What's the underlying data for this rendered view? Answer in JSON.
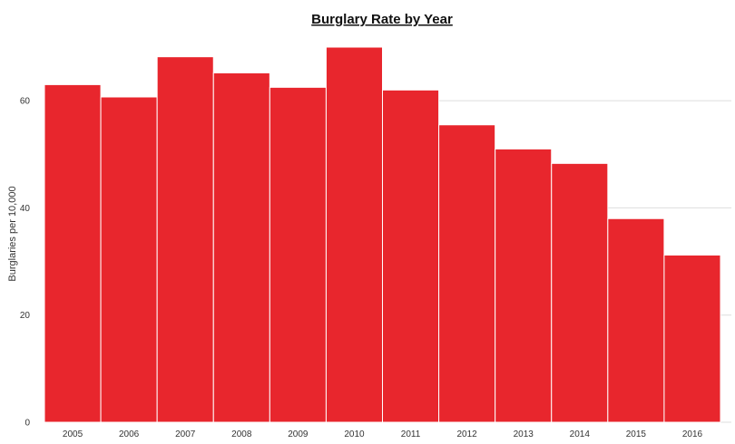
{
  "chart_data": {
    "type": "bar",
    "title": "Burglary Rate by Year",
    "xlabel": "",
    "ylabel": "Burglaries per 10,000",
    "categories": [
      "2005",
      "2006",
      "2007",
      "2008",
      "2009",
      "2010",
      "2011",
      "2012",
      "2013",
      "2014",
      "2015",
      "2016"
    ],
    "values": [
      63.0,
      60.7,
      68.2,
      65.2,
      62.5,
      70.0,
      62.0,
      55.5,
      51.0,
      48.3,
      38.0,
      31.2
    ],
    "ylim": [
      0,
      70
    ],
    "yticks": [
      0,
      20,
      40,
      60
    ],
    "grid": true,
    "bar_color": "#e8262d"
  }
}
